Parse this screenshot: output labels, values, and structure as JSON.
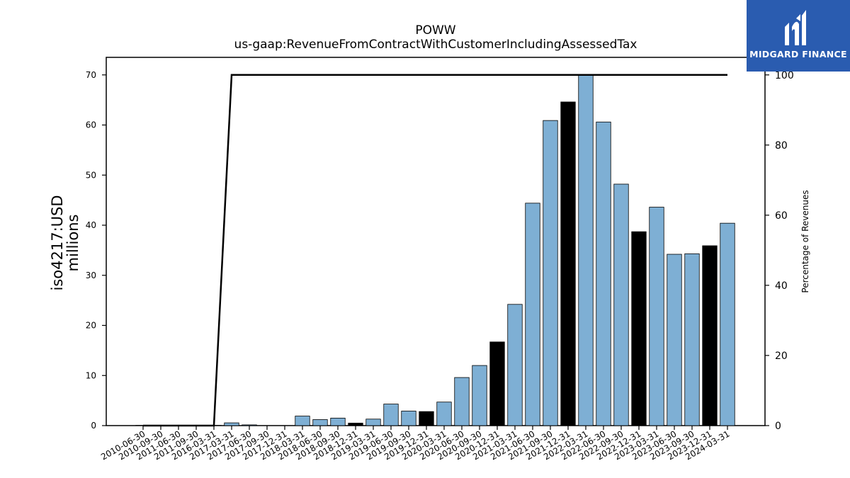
{
  "logo": {
    "text": "MIDGARD FINANCE",
    "bg_color": "#2a5cb0"
  },
  "chart_data": {
    "type": "bar",
    "title": "POWW",
    "subtitle": "us-gaap:RevenueFromContractWithCustomerIncludingAssessedTax",
    "ylabel": "iso4217:USD\nmillions",
    "y2label": "Percentage of Revenues",
    "ylim": [
      0,
      73.5
    ],
    "y2lim": [
      0,
      105
    ],
    "yticks": [
      0,
      10,
      20,
      30,
      40,
      50,
      60,
      70
    ],
    "y2ticks": [
      0,
      20,
      40,
      60,
      80,
      100
    ],
    "grid": false,
    "bar_color": "#7eafd4",
    "highlight_color": "#000000",
    "categories": [
      "2010-06-30",
      "2010-09-30",
      "2011-06-30",
      "2011-09-30",
      "2016-03-31",
      "2017-03-31",
      "2017-06-30",
      "2017-09-30",
      "2017-12-31",
      "2018-03-31",
      "2018-06-30",
      "2018-09-30",
      "2018-12-31",
      "2019-03-31",
      "2019-06-30",
      "2019-09-30",
      "2019-12-31",
      "2020-03-31",
      "2020-06-30",
      "2020-09-30",
      "2020-12-31",
      "2021-03-31",
      "2021-06-30",
      "2021-09-30",
      "2021-12-31",
      "2022-03-31",
      "2022-06-30",
      "2022-09-30",
      "2022-12-31",
      "2023-03-31",
      "2023-06-30",
      "2023-09-30",
      "2023-12-31",
      "2024-03-31"
    ],
    "series": [
      {
        "type": "bar",
        "values": [
          0.05,
          0.05,
          0.05,
          0.05,
          0.05,
          0.55,
          0.15,
          0.0,
          0.0,
          1.9,
          1.2,
          1.5,
          0.5,
          1.3,
          4.3,
          2.9,
          2.8,
          4.7,
          9.6,
          12.0,
          16.7,
          24.2,
          44.4,
          60.9,
          64.6,
          70.0,
          60.6,
          48.2,
          38.7,
          43.6,
          34.2,
          34.3,
          35.9,
          40.4
        ],
        "highlight": [
          false,
          false,
          false,
          false,
          false,
          false,
          false,
          false,
          false,
          false,
          false,
          false,
          true,
          false,
          false,
          false,
          true,
          false,
          false,
          false,
          true,
          false,
          false,
          false,
          true,
          false,
          false,
          false,
          true,
          false,
          false,
          false,
          true,
          false
        ]
      },
      {
        "type": "line",
        "axis": "right",
        "values": [
          0,
          0,
          0,
          0,
          0,
          100,
          100,
          100,
          100,
          100,
          100,
          100,
          100,
          100,
          100,
          100,
          100,
          100,
          100,
          100,
          100,
          100,
          100,
          100,
          100,
          100,
          100,
          100,
          100,
          100,
          100,
          100,
          100,
          100
        ]
      }
    ]
  }
}
